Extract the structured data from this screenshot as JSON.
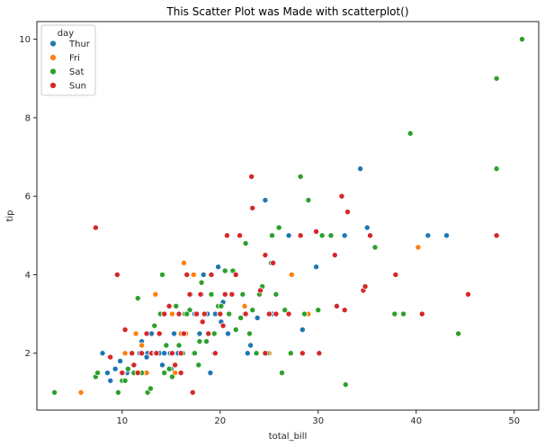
{
  "chart_data": {
    "type": "scatter",
    "title": "This Scatter Plot was Made with scatterplot()",
    "xlabel": "total_bill",
    "ylabel": "tip",
    "xlim": [
      1.3,
      52.5
    ],
    "ylim": [
      0.55,
      10.45
    ],
    "xticks": [
      10,
      20,
      30,
      40,
      50
    ],
    "yticks": [
      2,
      4,
      6,
      8,
      10
    ],
    "grid": false,
    "legend": {
      "title": "day",
      "placement": "top-left"
    },
    "series": [
      {
        "name": "Thur",
        "color": "#1f77b4",
        "points": [
          [
            8.0,
            2.0
          ],
          [
            8.5,
            1.5
          ],
          [
            8.8,
            1.3
          ],
          [
            9.3,
            1.6
          ],
          [
            9.8,
            1.8
          ],
          [
            10.3,
            2.0
          ],
          [
            10.5,
            1.5
          ],
          [
            11.2,
            1.7
          ],
          [
            11.8,
            2.0
          ],
          [
            12.0,
            2.3
          ],
          [
            12.3,
            1.5
          ],
          [
            12.6,
            2.0
          ],
          [
            13.0,
            2.5
          ],
          [
            13.3,
            2.0
          ],
          [
            13.8,
            2.0
          ],
          [
            14.3,
            2.0
          ],
          [
            14.9,
            2.0
          ],
          [
            15.3,
            2.5
          ],
          [
            15.7,
            2.0
          ],
          [
            16.1,
            2.0
          ],
          [
            16.5,
            3.0
          ],
          [
            17.0,
            3.5
          ],
          [
            17.4,
            3.0
          ],
          [
            17.9,
            2.5
          ],
          [
            18.3,
            4.0
          ],
          [
            18.7,
            3.0
          ],
          [
            19.0,
            1.5
          ],
          [
            19.5,
            3.0
          ],
          [
            19.8,
            4.2
          ],
          [
            20.1,
            2.8
          ],
          [
            20.8,
            2.5
          ],
          [
            21.0,
            3.0
          ],
          [
            22.5,
            3.0
          ],
          [
            22.8,
            2.0
          ],
          [
            23.1,
            2.2
          ],
          [
            23.8,
            2.9
          ],
          [
            24.6,
            5.9
          ],
          [
            25.3,
            3.0
          ],
          [
            27.0,
            5.0
          ],
          [
            28.4,
            2.6
          ],
          [
            29.8,
            4.2
          ],
          [
            32.7,
            5.0
          ],
          [
            34.3,
            6.7
          ],
          [
            35.0,
            5.2
          ],
          [
            41.2,
            5.0
          ],
          [
            43.1,
            5.0
          ],
          [
            14.1,
            1.7
          ],
          [
            16.4,
            3.0
          ],
          [
            18.1,
            3.5
          ],
          [
            19.4,
            2.0
          ],
          [
            10.1,
            1.5
          ],
          [
            12.5,
            1.9
          ],
          [
            15.0,
            1.6
          ],
          [
            17.3,
            2.0
          ],
          [
            20.3,
            3.3
          ]
        ]
      },
      {
        "name": "Fri",
        "color": "#ff7f0e",
        "points": [
          [
            5.8,
            1.0
          ],
          [
            8.7,
            1.9
          ],
          [
            10.3,
            2.0
          ],
          [
            11.4,
            2.5
          ],
          [
            12.0,
            2.2
          ],
          [
            12.5,
            1.5
          ],
          [
            13.4,
            3.5
          ],
          [
            13.8,
            2.5
          ],
          [
            15.1,
            3.0
          ],
          [
            15.4,
            1.5
          ],
          [
            16.0,
            2.5
          ],
          [
            16.3,
            4.3
          ],
          [
            16.5,
            2.5
          ],
          [
            17.3,
            4.0
          ],
          [
            20.0,
            3.0
          ],
          [
            21.0,
            3.0
          ],
          [
            22.5,
            3.2
          ],
          [
            25.0,
            2.0
          ],
          [
            27.3,
            4.0
          ],
          [
            29.0,
            3.0
          ],
          [
            40.2,
            4.7
          ]
        ]
      },
      {
        "name": "Sat",
        "color": "#2ca02c",
        "points": [
          [
            3.1,
            1.0
          ],
          [
            7.3,
            1.4
          ],
          [
            7.5,
            1.5
          ],
          [
            9.6,
            1.0
          ],
          [
            10.0,
            1.3
          ],
          [
            10.3,
            1.3
          ],
          [
            10.6,
            1.6
          ],
          [
            11.2,
            1.5
          ],
          [
            11.6,
            3.4
          ],
          [
            12.0,
            1.5
          ],
          [
            12.6,
            1.0
          ],
          [
            12.9,
            1.1
          ],
          [
            13.3,
            2.7
          ],
          [
            13.9,
            3.0
          ],
          [
            14.1,
            4.0
          ],
          [
            14.5,
            2.2
          ],
          [
            14.8,
            1.6
          ],
          [
            15.1,
            1.4
          ],
          [
            15.5,
            3.2
          ],
          [
            15.8,
            2.2
          ],
          [
            16.2,
            2.0
          ],
          [
            16.4,
            3.0
          ],
          [
            16.9,
            3.1
          ],
          [
            17.4,
            2.0
          ],
          [
            17.8,
            1.7
          ],
          [
            17.9,
            2.3
          ],
          [
            18.1,
            3.8
          ],
          [
            18.6,
            2.3
          ],
          [
            19.1,
            3.5
          ],
          [
            19.8,
            3.2
          ],
          [
            20.1,
            3.2
          ],
          [
            20.5,
            4.1
          ],
          [
            20.9,
            3.0
          ],
          [
            21.6,
            2.6
          ],
          [
            22.1,
            2.9
          ],
          [
            22.3,
            3.5
          ],
          [
            22.6,
            4.8
          ],
          [
            23.3,
            3.1
          ],
          [
            23.7,
            2.0
          ],
          [
            24.0,
            3.5
          ],
          [
            24.3,
            3.7
          ],
          [
            24.8,
            2.0
          ],
          [
            25.2,
            4.3
          ],
          [
            25.3,
            5.0
          ],
          [
            25.7,
            3.5
          ],
          [
            26.0,
            5.2
          ],
          [
            26.3,
            1.5
          ],
          [
            26.6,
            3.1
          ],
          [
            27.2,
            2.0
          ],
          [
            28.2,
            6.5
          ],
          [
            28.6,
            3.0
          ],
          [
            29.0,
            5.9
          ],
          [
            30.0,
            3.1
          ],
          [
            30.4,
            5.0
          ],
          [
            31.3,
            5.0
          ],
          [
            32.8,
            1.2
          ],
          [
            35.8,
            4.7
          ],
          [
            37.8,
            3.0
          ],
          [
            38.7,
            3.0
          ],
          [
            39.4,
            7.6
          ],
          [
            44.3,
            2.5
          ],
          [
            48.2,
            9.0
          ],
          [
            48.2,
            6.7
          ],
          [
            50.8,
            10.0
          ],
          [
            14.3,
            1.5
          ],
          [
            16.6,
            3.0
          ],
          [
            19.4,
            2.5
          ],
          [
            21.3,
            4.1
          ],
          [
            23.0,
            2.5
          ]
        ]
      },
      {
        "name": "Sun",
        "color": "#d62728",
        "points": [
          [
            7.3,
            5.2
          ],
          [
            8.8,
            1.9
          ],
          [
            9.5,
            4.0
          ],
          [
            10.0,
            1.5
          ],
          [
            10.3,
            2.6
          ],
          [
            11.0,
            2.0
          ],
          [
            11.6,
            1.5
          ],
          [
            12.0,
            2.0
          ],
          [
            12.5,
            2.5
          ],
          [
            13.0,
            2.0
          ],
          [
            13.4,
            2.0
          ],
          [
            13.8,
            2.5
          ],
          [
            14.3,
            3.0
          ],
          [
            14.8,
            3.2
          ],
          [
            15.1,
            2.0
          ],
          [
            15.4,
            1.7
          ],
          [
            15.8,
            3.0
          ],
          [
            16.0,
            1.5
          ],
          [
            16.3,
            2.5
          ],
          [
            16.6,
            4.0
          ],
          [
            16.9,
            3.5
          ],
          [
            17.2,
            1.0
          ],
          [
            17.6,
            3.0
          ],
          [
            18.0,
            3.5
          ],
          [
            18.4,
            3.0
          ],
          [
            18.8,
            2.5
          ],
          [
            19.1,
            4.0
          ],
          [
            19.5,
            2.0
          ],
          [
            20.0,
            3.0
          ],
          [
            20.5,
            3.5
          ],
          [
            20.7,
            5.0
          ],
          [
            21.2,
            3.5
          ],
          [
            21.6,
            4.0
          ],
          [
            22.0,
            5.0
          ],
          [
            22.6,
            3.0
          ],
          [
            23.2,
            6.5
          ],
          [
            23.3,
            5.7
          ],
          [
            24.1,
            3.6
          ],
          [
            24.6,
            4.5
          ],
          [
            25.0,
            3.0
          ],
          [
            25.4,
            4.3
          ],
          [
            25.7,
            3.0
          ],
          [
            27.0,
            3.0
          ],
          [
            28.4,
            2.0
          ],
          [
            29.8,
            5.1
          ],
          [
            30.1,
            2.0
          ],
          [
            31.7,
            4.5
          ],
          [
            32.4,
            6.0
          ],
          [
            32.7,
            3.1
          ],
          [
            33.0,
            5.6
          ],
          [
            34.6,
            3.6
          ],
          [
            35.3,
            5.0
          ],
          [
            37.9,
            4.0
          ],
          [
            40.6,
            3.0
          ],
          [
            45.3,
            3.5
          ],
          [
            48.2,
            5.0
          ],
          [
            11.2,
            1.7
          ],
          [
            13.5,
            2.0
          ],
          [
            16.0,
            2.0
          ],
          [
            18.2,
            2.8
          ],
          [
            20.3,
            2.7
          ],
          [
            24.6,
            2.0
          ],
          [
            28.2,
            5.0
          ],
          [
            31.9,
            3.2
          ],
          [
            34.8,
            3.7
          ]
        ]
      }
    ]
  }
}
